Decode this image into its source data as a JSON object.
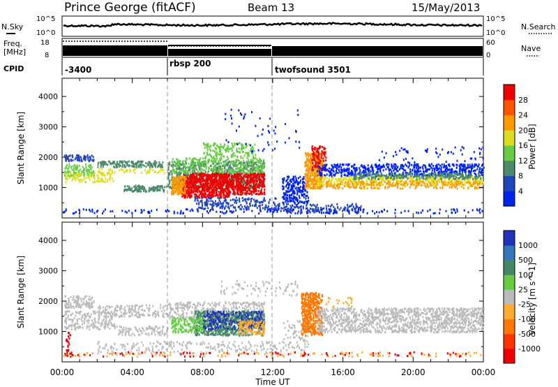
{
  "chart_data": [
    {
      "type": "line",
      "panel": "noise",
      "title": "Prince George (fitACF)",
      "beam": "Beam 13",
      "date": "15/May/2013",
      "left_label": "N.Sky",
      "right_label": "N.Search",
      "y_ticks_left": [
        "10^5",
        "10^0"
      ],
      "y_ticks_right": [
        "10^5",
        "10^0"
      ]
    },
    {
      "type": "line",
      "panel": "frequency",
      "left_label": "Freq.",
      "left_unit": "[MHz]",
      "right_label": "Nave",
      "y_ticks_left": [
        "18",
        "8"
      ],
      "y_ticks_right": [
        "60",
        "0"
      ]
    },
    {
      "type": "table",
      "panel": "cpid",
      "label": "CPID",
      "segments": [
        {
          "label": "-3400",
          "start": 0,
          "end": 6
        },
        {
          "label": "rbsp 200",
          "start": 6,
          "end": 12
        },
        {
          "label": "twofsound 3501",
          "start": 12,
          "end": 24
        }
      ]
    },
    {
      "type": "heatmap",
      "panel": "power",
      "ylabel": "Slant Range [km]",
      "ylim": [
        0,
        4600
      ],
      "y_ticks": [
        1000,
        2000,
        3000,
        4000
      ],
      "colorbar_label": "Power [dB]",
      "colorbar_ticks": [
        "28",
        "24",
        "20",
        "16",
        "12",
        "8",
        "4"
      ],
      "colors": [
        "#0022ee",
        "#2244bb",
        "#4a8a6a",
        "#66cc44",
        "#dddd22",
        "#ff9900",
        "#ff5500",
        "#ee0000"
      ]
    },
    {
      "type": "heatmap",
      "panel": "velocity",
      "ylabel": "Slant Range [km]",
      "ylim": [
        0,
        4600
      ],
      "y_ticks": [
        1000,
        2000,
        3000,
        4000
      ],
      "colorbar_label": "Velocity [m s^-1]",
      "colorbar_ticks": [
        "1000",
        "500",
        "100",
        "25",
        "-25",
        "-100",
        "-500",
        "-1000"
      ],
      "colors": [
        "#2233bb",
        "#3377bb",
        "#448866",
        "#66cc44",
        "#bbbbbb",
        "#ffaa33",
        "#ff7700",
        "#ff3300",
        "#ee0000"
      ]
    }
  ],
  "x_axis": {
    "label": "Time UT",
    "xlim": [
      0,
      24
    ],
    "ticks": [
      "00:00",
      "04:00",
      "08:00",
      "12:00",
      "16:00",
      "20:00",
      "00:00"
    ],
    "tick_hours": [
      0,
      4,
      8,
      12,
      16,
      20,
      24
    ]
  }
}
